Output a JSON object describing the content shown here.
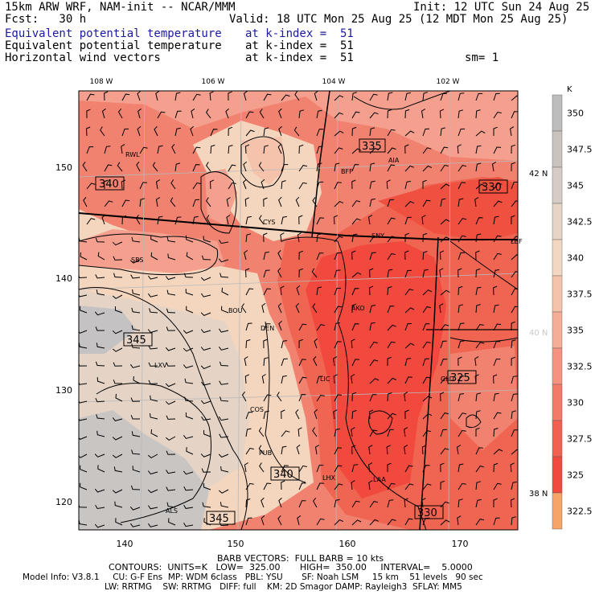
{
  "header": {
    "model": "15km ARW WRF, NAM-init -- NCAR/MMM",
    "init": "Init: 12 UTC Sun 24 Aug 25",
    "fcst": "Fcst:   30 h",
    "valid": "Valid: 18 UTC Mon 25 Aug 25 (12 MDT Mon 25 Aug 25)",
    "fields": [
      {
        "name": "Equivalent potential temperature",
        "level": "at k-index =  51",
        "color": "#1a1aa0"
      },
      {
        "name": "Equivalent potential temperature",
        "level": "at k-index =  51",
        "color": "#000000"
      },
      {
        "name": "Horizontal wind vectors",
        "level": "at k-index =  51",
        "color": "#000000"
      }
    ],
    "sm": "sm= 1"
  },
  "map": {
    "lon_labels": [
      "108 W",
      "106 W",
      "104 W",
      "102 W"
    ],
    "lat_labels": [
      "42 N",
      "40 N",
      "38 N"
    ],
    "x_ticks": [
      "140",
      "150",
      "160",
      "170"
    ],
    "y_ticks": [
      "150",
      "140",
      "130",
      "120"
    ],
    "stations": [
      "RWL",
      "SBS",
      "CYS",
      "BFF",
      "AIA",
      "SNY",
      "LBF",
      "BOU",
      "DEN",
      "AKO",
      "LXV",
      "COS",
      "LIC",
      "GLD",
      "PUB",
      "LHX",
      "LAA",
      "ALS"
    ],
    "contour_labels": [
      "335",
      "340",
      "330",
      "345",
      "325",
      "340",
      "345",
      "330"
    ],
    "colors": {
      "c322": "#f7a468",
      "c325": "#f5553f",
      "c327": "#f2493e",
      "c330": "#f06552",
      "c332": "#f28270",
      "c335": "#f5a08e",
      "c337": "#f6bea7",
      "c340": "#f4d5bd",
      "c342": "#e5d4c5",
      "c345": "#d4cac4",
      "c347": "#c4c2c2",
      "c350": "#b8b8b8"
    }
  },
  "colorbar": {
    "unit": "K",
    "labels": [
      "350",
      "347.5",
      "345",
      "342.5",
      "340",
      "337.5",
      "335",
      "332.5",
      "330",
      "327.5",
      "325",
      "322.5"
    ],
    "colors": [
      "#bdbdbd",
      "#c9c3c0",
      "#d6cbc5",
      "#e6d4c7",
      "#f2d7c2",
      "#f5c3ab",
      "#f5ad97",
      "#f59380",
      "#f37a68",
      "#f2614f",
      "#f04a3c",
      "#f7a468"
    ]
  },
  "footer": {
    "barb": "BARB VECTORS:  FULL BARB = 10 kts",
    "contours": "CONTOURS:  UNITS=K   LOW=  325.00       HIGH=  350.00     INTERVAL=    5.0000",
    "model1": "Model Info: V3.8.1     CU: G-F Ens  MP: WDM 6class   PBL: YSU       SF: Noah LSM     15 km    51 levels   90 sec",
    "model2": "LW: RRTMG    SW: RRTMG   DIFF: full    KM: 2D Smagor DAMP: Rayleigh3  SFLAY: MM5"
  }
}
